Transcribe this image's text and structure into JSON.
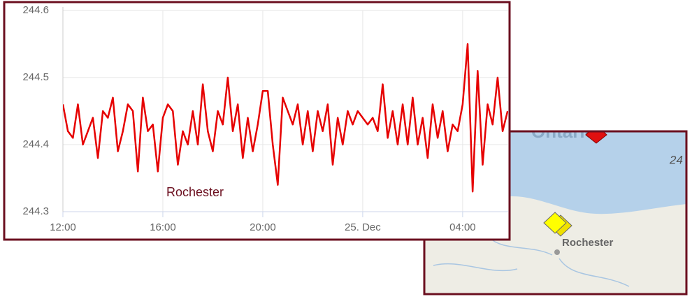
{
  "chart_data": {
    "type": "line",
    "annotation": "Rochester",
    "x": [
      0,
      0.2,
      0.4,
      0.6,
      0.8,
      1,
      1.2,
      1.4,
      1.6,
      1.8,
      2,
      2.2,
      2.4,
      2.6,
      2.8,
      3,
      3.2,
      3.4,
      3.6,
      3.8,
      4,
      4.2,
      4.4,
      4.6,
      4.8,
      5,
      5.2,
      5.4,
      5.6,
      5.8,
      6,
      6.2,
      6.4,
      6.6,
      6.8,
      7,
      7.2,
      7.4,
      7.6,
      7.8,
      8,
      8.2,
      8.4,
      8.6,
      8.8,
      9,
      9.2,
      9.4,
      9.6,
      9.8,
      10,
      10.2,
      10.4,
      10.6,
      10.8,
      11,
      11.2,
      11.4,
      11.6,
      11.8,
      12,
      12.2,
      12.4,
      12.6,
      12.8,
      13,
      13.2,
      13.4,
      13.6,
      13.8,
      14,
      14.2,
      14.4,
      14.6,
      14.8,
      15,
      15.2,
      15.4,
      15.6,
      15.8,
      16,
      16.2,
      16.4,
      16.6,
      16.8,
      17,
      17.2,
      17.4,
      17.6,
      17.8
    ],
    "series": [
      {
        "color": "#e60000",
        "values": [
          244.46,
          244.42,
          244.41,
          244.46,
          244.4,
          244.42,
          244.44,
          244.38,
          244.45,
          244.44,
          244.47,
          244.39,
          244.42,
          244.46,
          244.45,
          244.36,
          244.47,
          244.42,
          244.43,
          244.36,
          244.44,
          244.46,
          244.45,
          244.37,
          244.42,
          244.4,
          244.45,
          244.4,
          244.49,
          244.42,
          244.39,
          244.45,
          244.43,
          244.5,
          244.42,
          244.46,
          244.38,
          244.44,
          244.39,
          244.43,
          244.48,
          244.48,
          244.4,
          244.34,
          244.47,
          244.45,
          244.43,
          244.46,
          244.4,
          244.45,
          244.39,
          244.45,
          244.42,
          244.46,
          244.37,
          244.44,
          244.4,
          244.45,
          244.43,
          244.45,
          244.44,
          244.43,
          244.44,
          244.42,
          244.49,
          244.41,
          244.45,
          244.4,
          244.46,
          244.4,
          244.47,
          244.4,
          244.44,
          244.38,
          244.46,
          244.41,
          244.45,
          244.39,
          244.43,
          244.42,
          244.46,
          244.55,
          244.33,
          244.51,
          244.37,
          244.46,
          244.43,
          244.5,
          244.42,
          244.45
        ]
      }
    ],
    "xlim": [
      0,
      17.85
    ],
    "xticks": [
      {
        "value": 0,
        "label": "12:00"
      },
      {
        "value": 4,
        "label": "16:00"
      },
      {
        "value": 8,
        "label": "20:00"
      },
      {
        "value": 12,
        "label": "25. Dec"
      },
      {
        "value": 16,
        "label": "04:00"
      }
    ],
    "ylim": [
      244.3,
      244.6
    ],
    "yticks": [
      244.3,
      244.4,
      244.5,
      244.6
    ],
    "grid": true
  },
  "map": {
    "labels": [
      "Ontario",
      "24",
      "Rochester"
    ]
  }
}
